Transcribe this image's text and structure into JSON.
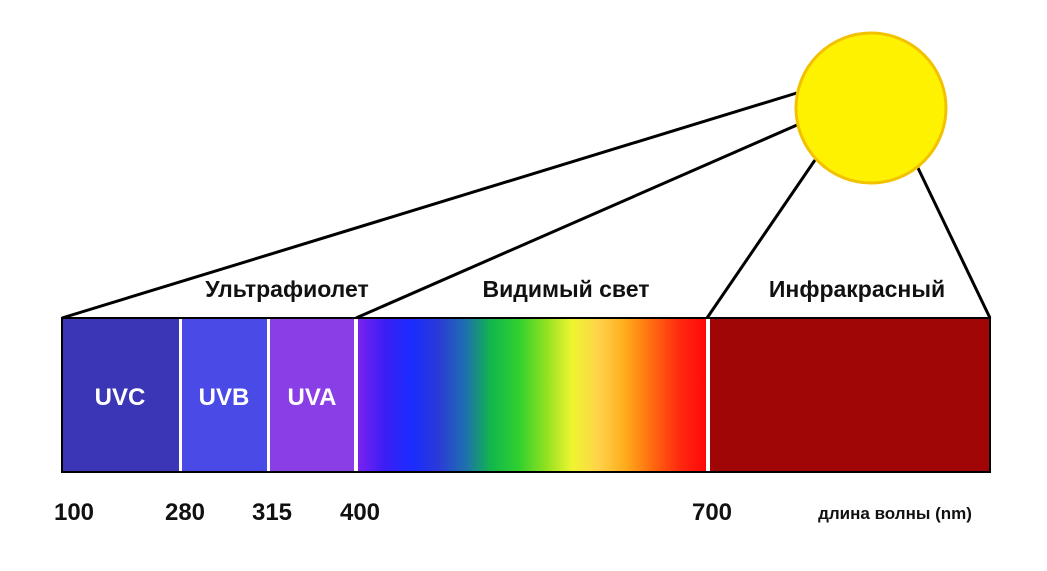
{
  "regions": {
    "ultraviolet": "Ультрафиолет",
    "visible": "Видимый свет",
    "infrared": "Инфракрасный"
  },
  "uv_bands": [
    {
      "label": "UVC",
      "color": "#3a36b6"
    },
    {
      "label": "UVB",
      "color": "#4a4ae6"
    },
    {
      "label": "UVA",
      "color": "#8a3fe6"
    }
  ],
  "visible_colors": [
    "#7a22f0",
    "#3b1ef5",
    "#1a2cff",
    "#2a3ad8",
    "#1f6fb0",
    "#12b84a",
    "#30d030",
    "#8ee020",
    "#eef530",
    "#ffd24a",
    "#ffab1a",
    "#ff6a10",
    "#ff2a10",
    "#ff0808"
  ],
  "infrared_color": "#a00606",
  "sun_color": "#fff200",
  "ticks": [
    "100",
    "280",
    "315",
    "400",
    "700"
  ],
  "axis_label": "длина волны (nm)"
}
